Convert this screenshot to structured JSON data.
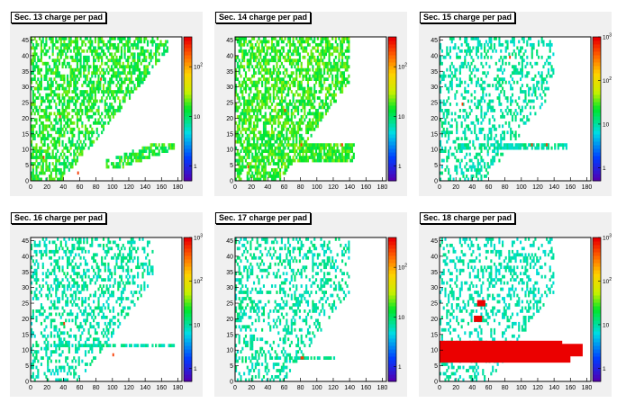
{
  "chart_data": [
    {
      "type": "heatmap",
      "title": "Sec. 13 charge per pad",
      "xlim": [
        0,
        185
      ],
      "ylim": [
        0,
        46
      ],
      "x_ticks": [
        "0",
        "20",
        "40",
        "60",
        "80",
        "100",
        "120",
        "140",
        "160",
        "180"
      ],
      "y_ticks": [
        "0",
        "5",
        "10",
        "15",
        "20",
        "25",
        "30",
        "35",
        "40",
        "45"
      ],
      "z_ticks": [
        "1",
        "10",
        "10^2"
      ],
      "zlim": [
        0.5,
        400
      ],
      "log_z": true,
      "occupancy": "upper-left wedge, x from 0 to ~(40 + 3.1*y) up to y=46; green band along diagonal near y=5-11 from x=90 to 175",
      "dominant_level": "green"
    },
    {
      "type": "heatmap",
      "title": "Sec. 14 charge per pad",
      "xlim": [
        0,
        185
      ],
      "ylim": [
        0,
        46
      ],
      "x_ticks": [
        "0",
        "20",
        "40",
        "60",
        "80",
        "100",
        "120",
        "140",
        "160",
        "180"
      ],
      "y_ticks": [
        "0",
        "5",
        "10",
        "15",
        "20",
        "25",
        "30",
        "35",
        "40",
        "45"
      ],
      "z_ticks": [
        "1",
        "10",
        "10^2"
      ],
      "zlim": [
        0.5,
        400
      ],
      "log_z": true,
      "occupancy": "upper-left wedge bounded by x < 60 + 2.7*y; sparse row near y=5-11",
      "dominant_level": "green"
    },
    {
      "type": "heatmap",
      "title": "Sec. 15 charge per pad",
      "xlim": [
        0,
        185
      ],
      "ylim": [
        0,
        46
      ],
      "x_ticks": [
        "0",
        "20",
        "40",
        "60",
        "80",
        "100",
        "120",
        "140",
        "160",
        "180"
      ],
      "y_ticks": [
        "0",
        "5",
        "10",
        "15",
        "20",
        "25",
        "30",
        "35",
        "40",
        "45"
      ],
      "z_ticks": [
        "1",
        "10",
        "10^2",
        "10^3"
      ],
      "zlim": [
        0.5,
        1000
      ],
      "log_z": true,
      "occupancy": "sparse upper-left wedge, x < 55 + 3*y",
      "dominant_level": "cyan"
    },
    {
      "type": "heatmap",
      "title": "Sec. 16 charge per pad",
      "xlim": [
        0,
        185
      ],
      "ylim": [
        0,
        46
      ],
      "x_ticks": [
        "0",
        "20",
        "40",
        "60",
        "80",
        "100",
        "120",
        "140",
        "160",
        "180"
      ],
      "y_ticks": [
        "0",
        "5",
        "10",
        "15",
        "20",
        "25",
        "30",
        "35",
        "40",
        "45"
      ],
      "z_ticks": [
        "1",
        "10",
        "10^2",
        "10^3"
      ],
      "zlim": [
        0.5,
        1000
      ],
      "log_z": true,
      "occupancy": "sparse upper-left wedge, x < 60 + 2.8*y; row at y=11",
      "dominant_level": "cyan"
    },
    {
      "type": "heatmap",
      "title": "Sec. 17 charge per pad",
      "xlim": [
        0,
        185
      ],
      "ylim": [
        0,
        46
      ],
      "x_ticks": [
        "0",
        "20",
        "40",
        "60",
        "80",
        "100",
        "120",
        "140",
        "160",
        "180"
      ],
      "y_ticks": [
        "0",
        "5",
        "10",
        "15",
        "20",
        "25",
        "30",
        "35",
        "40",
        "45"
      ],
      "z_ticks": [
        "1",
        "10",
        "10^2"
      ],
      "zlim": [
        0.5,
        400
      ],
      "log_z": true,
      "occupancy": "sparse upper-left wedge, x < 60 + 2.8*y; row at y=7 from x=40 to 120",
      "dominant_level": "cyan"
    },
    {
      "type": "heatmap",
      "title": "Sec. 18 charge per pad",
      "xlim": [
        0,
        185
      ],
      "ylim": [
        0,
        46
      ],
      "x_ticks": [
        "0",
        "20",
        "40",
        "60",
        "80",
        "100",
        "120",
        "140",
        "160",
        "180"
      ],
      "y_ticks": [
        "0",
        "5",
        "10",
        "15",
        "20",
        "25",
        "30",
        "35",
        "40",
        "45"
      ],
      "z_ticks": [
        "1",
        "10",
        "10^2",
        "10^3"
      ],
      "zlim": [
        0.5,
        1000
      ],
      "log_z": true,
      "occupancy": "sparse cyan upper-left wedge, x < 60 + 2.8*y; saturated red band y=7-12 from x=0 to ~175, red blocks near (50,24) and (45,18)",
      "dominant_level": "cyan"
    }
  ]
}
